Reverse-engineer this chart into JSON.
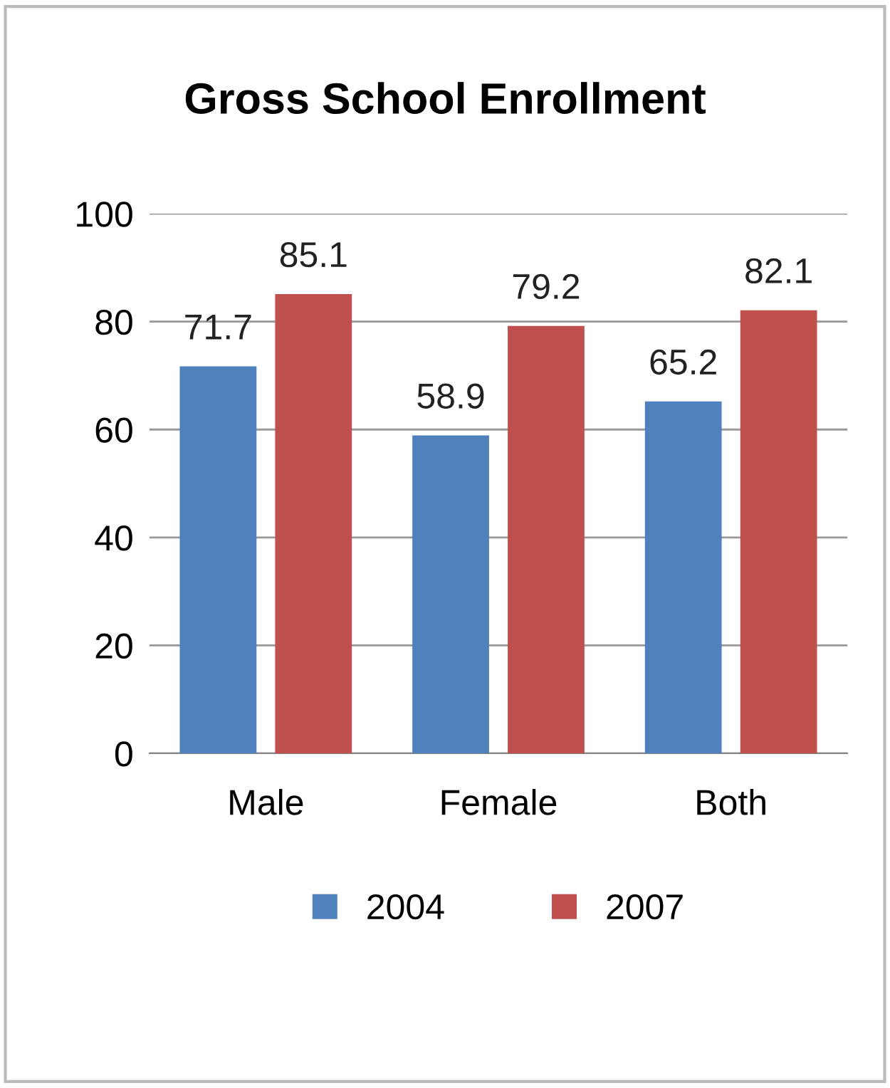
{
  "chart_data": {
    "type": "bar",
    "title": "Gross School Enrollment",
    "categories": [
      "Male",
      "Female",
      "Both"
    ],
    "series": [
      {
        "name": "2004",
        "color": "#4f81bd",
        "values": [
          71.7,
          58.9,
          65.2
        ]
      },
      {
        "name": "2007",
        "color": "#c0504d",
        "values": [
          85.1,
          79.2,
          82.1
        ]
      }
    ],
    "ylim": [
      0,
      100
    ],
    "yticks": [
      0,
      20,
      40,
      60,
      80,
      100
    ],
    "grid": "y",
    "legend": "bottom",
    "data_labels": true
  }
}
